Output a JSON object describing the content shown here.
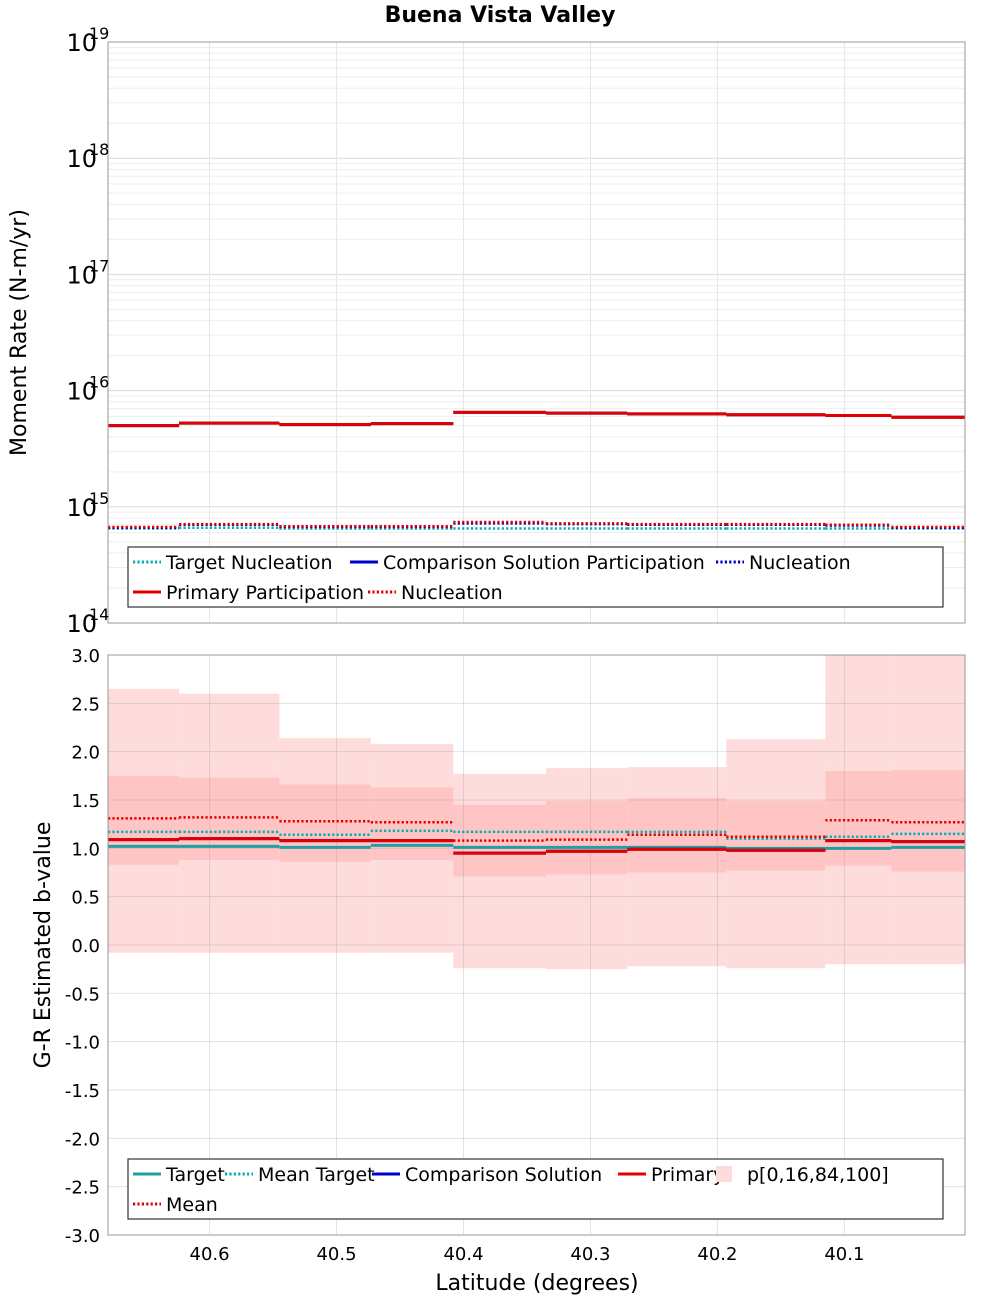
{
  "chart_data": {
    "title": "Buena Vista Valley",
    "xlabel": "Latitude (degrees)",
    "xlim": [
      40.68,
      40.005
    ],
    "xticks": [
      40.6,
      40.5,
      40.4,
      40.3,
      40.2,
      40.1
    ],
    "x_tick_labels": [
      "40.6",
      "40.5",
      "40.4",
      "40.3",
      "40.2",
      "40.1"
    ],
    "bins": [
      40.68,
      40.624,
      40.545,
      40.473,
      40.408,
      40.335,
      40.271,
      40.193,
      40.115,
      40.063,
      40.005
    ],
    "grid": true,
    "panels": [
      {
        "type": "line",
        "scale": "log",
        "ylabel": "Moment Rate (N-m/yr)",
        "ylim": [
          100000000000000.0,
          1e+19
        ],
        "y_tick_exponents": [
          19,
          18,
          17,
          16,
          15,
          14
        ],
        "y_tick_base": "10",
        "legend_placement": "bottom",
        "legend": [
          {
            "label": "Target Nucleation",
            "color": "#00b0b0",
            "dash": "dotted"
          },
          {
            "label": "Comparison Solution Participation",
            "color": "#0000cc",
            "dash": "solid"
          },
          {
            "label": "Nucleation",
            "color": "#0000cc",
            "dash": "dotted"
          },
          {
            "label": "Primary Participation",
            "color": "#e00000",
            "dash": "solid"
          },
          {
            "label": "Nucleation",
            "color": "#e00000",
            "dash": "dotted"
          }
        ],
        "series": [
          {
            "name": "Target Nucleation",
            "color": "#00b0b0",
            "dash": "dotted",
            "values": [
              650000000000000.0,
              660000000000000.0,
              650000000000000.0,
              650000000000000.0,
              650000000000000.0,
              650000000000000.0,
              650000000000000.0,
              650000000000000.0,
              650000000000000.0,
              650000000000000.0
            ]
          },
          {
            "name": "Comparison Solution Participation",
            "color": "#0000cc",
            "dash": "solid",
            "values": [
              5000000000000000.0,
              5250000000000000.0,
              5100000000000000.0,
              5200000000000000.0,
              6500000000000000.0,
              6400000000000000.0,
              6300000000000000.0,
              6200000000000000.0,
              6100000000000000.0,
              5900000000000000.0
            ]
          },
          {
            "name": "Comparison Solution Nucleation",
            "color": "#0000cc",
            "dash": "dotted",
            "values": [
              660000000000000.0,
              700000000000000.0,
              670000000000000.0,
              670000000000000.0,
              720000000000000.0,
              710000000000000.0,
              700000000000000.0,
              700000000000000.0,
              690000000000000.0,
              660000000000000.0
            ]
          },
          {
            "name": "Primary Participation",
            "color": "#e00000",
            "dash": "solid",
            "values": [
              5000000000000000.0,
              5250000000000000.0,
              5100000000000000.0,
              5200000000000000.0,
              6500000000000000.0,
              6400000000000000.0,
              6300000000000000.0,
              6200000000000000.0,
              6100000000000000.0,
              5900000000000000.0
            ]
          },
          {
            "name": "Primary Nucleation",
            "color": "#e00000",
            "dash": "dotted",
            "values": [
              670000000000000.0,
              710000000000000.0,
              680000000000000.0,
              680000000000000.0,
              740000000000000.0,
              720000000000000.0,
              710000000000000.0,
              710000000000000.0,
              700000000000000.0,
              670000000000000.0
            ]
          }
        ]
      },
      {
        "type": "line",
        "scale": "linear",
        "ylabel": "G-R Estimated b-value",
        "ylim": [
          -3.0,
          3.0
        ],
        "yticks": [
          3.0,
          2.5,
          2.0,
          1.5,
          1.0,
          0.5,
          0.0,
          -0.5,
          -1.0,
          -1.5,
          -2.0,
          -2.5,
          -3.0
        ],
        "y_tick_labels": [
          "3.0",
          "2.5",
          "2.0",
          "1.5",
          "1.0",
          "0.5",
          "0.0",
          "-0.5",
          "-1.0",
          "-1.5",
          "-2.0",
          "-2.5",
          "-3.0"
        ],
        "legend_placement": "bottom",
        "legend": [
          {
            "label": "Target",
            "color": "#20a0a0",
            "dash": "solid"
          },
          {
            "label": "Mean Target",
            "color": "#00b0b0",
            "dash": "dotted"
          },
          {
            "label": "Comparison Solution",
            "color": "#0000cc",
            "dash": "solid"
          },
          {
            "label": "Primary",
            "color": "#e00000",
            "dash": "solid"
          },
          {
            "label": "p[0,16,84,100]",
            "color": "#ffdcdc",
            "dash": "box"
          },
          {
            "label": "Mean",
            "color": "#e00000",
            "dash": "dotted"
          }
        ],
        "bands": {
          "outer_color": "#ffdcdc",
          "inner_color": "#ffc4c4",
          "p0": [
            -0.08,
            -0.08,
            -0.08,
            -0.08,
            -0.24,
            -0.25,
            -0.22,
            -0.24,
            -0.2,
            -0.2
          ],
          "p16": [
            0.83,
            0.88,
            0.86,
            0.88,
            0.71,
            0.73,
            0.75,
            0.77,
            0.82,
            0.76
          ],
          "p84": [
            1.75,
            1.73,
            1.66,
            1.63,
            1.45,
            1.49,
            1.52,
            1.49,
            1.8,
            1.81
          ],
          "p100": [
            2.65,
            2.6,
            2.14,
            2.08,
            1.77,
            1.83,
            1.84,
            2.13,
            3.0,
            3.0
          ]
        },
        "series": [
          {
            "name": "Target",
            "color": "#20a0a0",
            "dash": "solid",
            "values": [
              1.02,
              1.02,
              1.01,
              1.03,
              1.01,
              1.01,
              1.01,
              1.0,
              1.0,
              1.01
            ]
          },
          {
            "name": "Mean Target",
            "color": "#00b0b0",
            "dash": "dotted",
            "values": [
              1.17,
              1.17,
              1.14,
              1.18,
              1.17,
              1.17,
              1.17,
              1.1,
              1.12,
              1.15
            ]
          },
          {
            "name": "Comparison Solution",
            "color": "#0000cc",
            "dash": "solid",
            "values": [
              1.09,
              1.1,
              1.08,
              1.08,
              0.95,
              0.97,
              0.99,
              0.98,
              1.08,
              1.07
            ]
          },
          {
            "name": "Primary",
            "color": "#e00000",
            "dash": "solid",
            "values": [
              1.09,
              1.1,
              1.08,
              1.08,
              0.95,
              0.97,
              0.99,
              0.98,
              1.08,
              1.07
            ]
          },
          {
            "name": "Mean",
            "color": "#e00000",
            "dash": "dotted",
            "values": [
              1.31,
              1.32,
              1.28,
              1.27,
              1.08,
              1.09,
              1.14,
              1.12,
              1.29,
              1.27
            ]
          }
        ]
      }
    ]
  }
}
